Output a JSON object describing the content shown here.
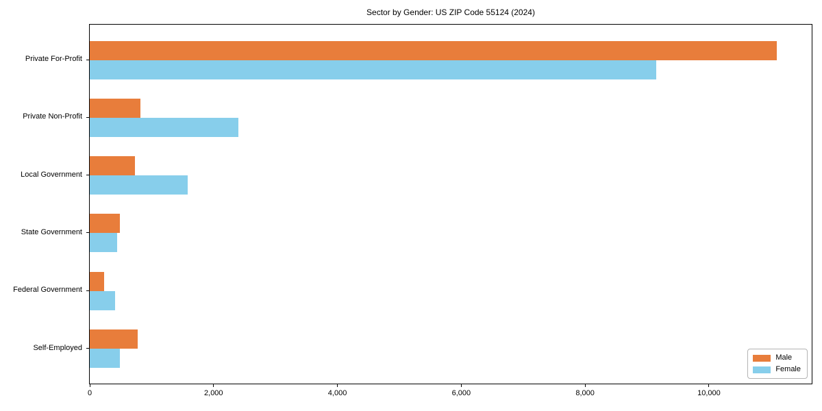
{
  "chart_data": {
    "type": "bar",
    "orientation": "horizontal",
    "title": "Sector by Gender: US ZIP Code 55124 (2024)",
    "categories": [
      "Private For-Profit",
      "Private Non-Profit",
      "Local Government",
      "State Government",
      "Federal Government",
      "Self-Employed"
    ],
    "series": [
      {
        "name": "Male",
        "color": "#E87D3B",
        "values": [
          11100,
          820,
          730,
          490,
          230,
          770
        ]
      },
      {
        "name": "Female",
        "color": "#87CEEB",
        "values": [
          9150,
          2400,
          1580,
          440,
          410,
          490
        ]
      }
    ],
    "xlabel": "",
    "ylabel": "",
    "xlim": [
      0,
      11660
    ],
    "xticks": {
      "values": [
        0,
        2000,
        4000,
        6000,
        8000,
        10000
      ],
      "labels": [
        "0",
        "2,000",
        "4,000",
        "6,000",
        "8,000",
        "10,000"
      ]
    },
    "legend": {
      "position": "lower right",
      "entries": [
        "Male",
        "Female"
      ]
    },
    "grid": false,
    "colors": {
      "background": "#ffffff",
      "spine": "#000000",
      "legend_border": "#b3b3b3"
    }
  }
}
